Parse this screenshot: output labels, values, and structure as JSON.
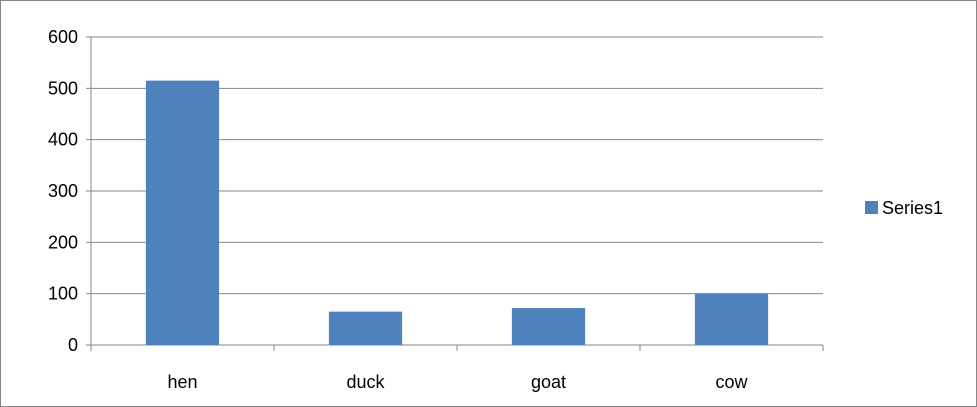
{
  "chart_data": {
    "type": "bar",
    "categories": [
      "hen",
      "duck",
      "goat",
      "cow"
    ],
    "series": [
      {
        "name": "Series1",
        "values": [
          515,
          65,
          72,
          100
        ],
        "color": "#4F81BD"
      }
    ],
    "ylim": [
      0,
      600
    ],
    "yticks": [
      0,
      100,
      200,
      300,
      400,
      500,
      600
    ],
    "grid": true,
    "legend": "right"
  }
}
